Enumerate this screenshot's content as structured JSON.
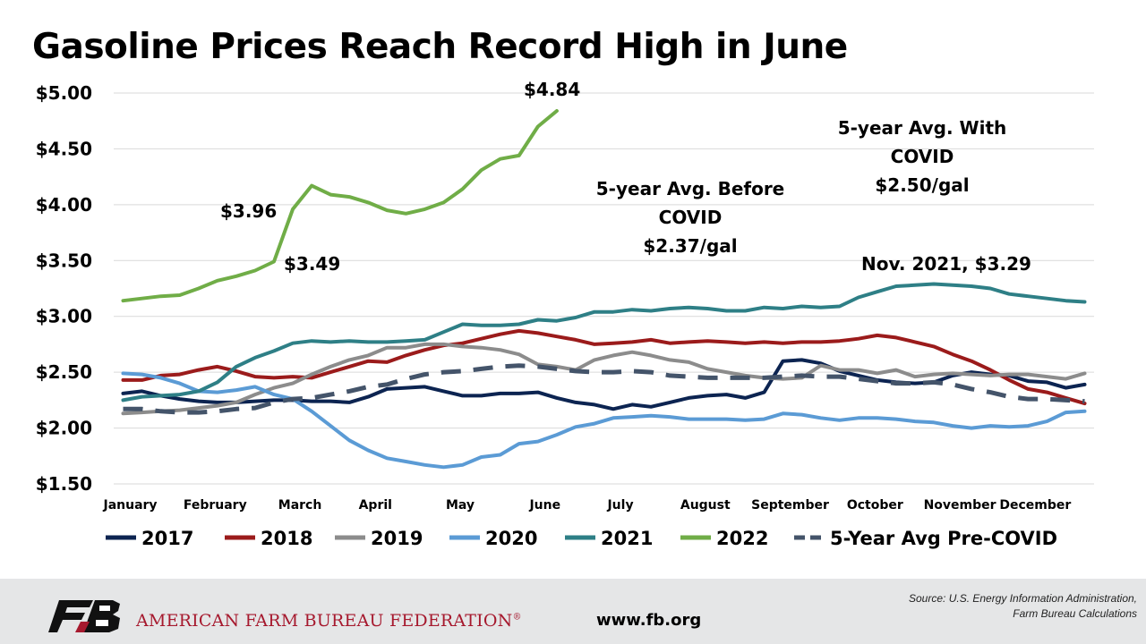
{
  "slide_title": "Gasoline Prices Reach Record High in June",
  "chart_data": {
    "type": "line",
    "title": "Gasoline Prices Reach Record High in June",
    "xlabel": "",
    "ylabel": "",
    "ylim": [
      1.5,
      5.0
    ],
    "y_ticks": [
      "$1.50",
      "$2.00",
      "$2.50",
      "$3.00",
      "$3.50",
      "$4.00",
      "$4.50",
      "$5.00"
    ],
    "y_tick_values": [
      1.5,
      2.0,
      2.5,
      3.0,
      3.5,
      4.0,
      4.5,
      5.0
    ],
    "x_weeks": 52,
    "months": [
      "January",
      "February",
      "March",
      "April",
      "May",
      "June",
      "July",
      "August",
      "September",
      "October",
      "November",
      "December"
    ],
    "grid": true,
    "legend_position": "bottom",
    "series": [
      {
        "name": "2017",
        "color": "#0c2451",
        "dashed": false,
        "values": [
          2.31,
          2.33,
          2.29,
          2.26,
          2.24,
          2.23,
          2.23,
          2.24,
          2.25,
          2.25,
          2.24,
          2.24,
          2.23,
          2.28,
          2.35,
          2.36,
          2.37,
          2.33,
          2.29,
          2.29,
          2.31,
          2.31,
          2.32,
          2.27,
          2.23,
          2.21,
          2.17,
          2.21,
          2.19,
          2.23,
          2.27,
          2.29,
          2.3,
          2.27,
          2.32,
          2.6,
          2.61,
          2.58,
          2.51,
          2.47,
          2.43,
          2.41,
          2.4,
          2.41,
          2.47,
          2.5,
          2.48,
          2.47,
          2.42,
          2.41,
          2.36,
          2.39
        ]
      },
      {
        "name": "2018",
        "color": "#9b1b1b",
        "dashed": false,
        "values": [
          2.43,
          2.43,
          2.47,
          2.48,
          2.52,
          2.55,
          2.51,
          2.46,
          2.45,
          2.46,
          2.45,
          2.5,
          2.55,
          2.6,
          2.59,
          2.65,
          2.7,
          2.74,
          2.76,
          2.8,
          2.84,
          2.87,
          2.85,
          2.82,
          2.79,
          2.75,
          2.76,
          2.77,
          2.79,
          2.76,
          2.77,
          2.78,
          2.77,
          2.76,
          2.77,
          2.76,
          2.77,
          2.77,
          2.78,
          2.8,
          2.83,
          2.81,
          2.77,
          2.73,
          2.66,
          2.6,
          2.52,
          2.43,
          2.35,
          2.32,
          2.27,
          2.22
        ]
      },
      {
        "name": "2019",
        "color": "#8c8c8c",
        "dashed": false,
        "values": [
          2.13,
          2.14,
          2.15,
          2.16,
          2.18,
          2.2,
          2.23,
          2.3,
          2.36,
          2.4,
          2.48,
          2.55,
          2.61,
          2.65,
          2.72,
          2.72,
          2.75,
          2.75,
          2.73,
          2.72,
          2.7,
          2.66,
          2.57,
          2.55,
          2.52,
          2.61,
          2.65,
          2.68,
          2.65,
          2.61,
          2.59,
          2.53,
          2.5,
          2.47,
          2.45,
          2.44,
          2.45,
          2.56,
          2.52,
          2.52,
          2.49,
          2.52,
          2.46,
          2.48,
          2.49,
          2.48,
          2.47,
          2.48,
          2.48,
          2.46,
          2.44,
          2.49
        ]
      },
      {
        "name": "2020",
        "color": "#5b9bd5",
        "dashed": false,
        "values": [
          2.49,
          2.48,
          2.45,
          2.4,
          2.33,
          2.32,
          2.34,
          2.37,
          2.3,
          2.26,
          2.15,
          2.02,
          1.89,
          1.8,
          1.73,
          1.7,
          1.67,
          1.65,
          1.67,
          1.74,
          1.76,
          1.86,
          1.88,
          1.94,
          2.01,
          2.04,
          2.09,
          2.1,
          2.11,
          2.1,
          2.08,
          2.08,
          2.08,
          2.07,
          2.08,
          2.13,
          2.12,
          2.09,
          2.07,
          2.09,
          2.09,
          2.08,
          2.06,
          2.05,
          2.02,
          2.0,
          2.02,
          2.01,
          2.02,
          2.06,
          2.14,
          2.15
        ]
      },
      {
        "name": "2021",
        "color": "#2e7f86",
        "dashed": false,
        "values": [
          2.25,
          2.28,
          2.29,
          2.3,
          2.33,
          2.41,
          2.55,
          2.63,
          2.69,
          2.76,
          2.78,
          2.77,
          2.78,
          2.77,
          2.77,
          2.78,
          2.79,
          2.86,
          2.93,
          2.92,
          2.92,
          2.93,
          2.97,
          2.96,
          2.99,
          3.04,
          3.04,
          3.06,
          3.05,
          3.07,
          3.08,
          3.07,
          3.05,
          3.05,
          3.08,
          3.07,
          3.09,
          3.08,
          3.09,
          3.17,
          3.22,
          3.27,
          3.28,
          3.29,
          3.28,
          3.27,
          3.25,
          3.2,
          3.18,
          3.16,
          3.14,
          3.13
        ]
      },
      {
        "name": "2022",
        "color": "#70ad47",
        "dashed": false,
        "values": [
          3.14,
          3.16,
          3.18,
          3.19,
          3.25,
          3.32,
          3.36,
          3.41,
          3.49,
          3.96,
          4.17,
          4.09,
          4.07,
          4.02,
          3.95,
          3.92,
          3.96,
          4.02,
          4.14,
          4.31,
          4.41,
          4.44,
          4.7,
          4.84
        ]
      },
      {
        "name": "5-Year Avg Pre-COVID",
        "color": "#44546a",
        "dashed": true,
        "values": [
          2.17,
          2.17,
          2.15,
          2.14,
          2.14,
          2.15,
          2.17,
          2.18,
          2.23,
          2.26,
          2.27,
          2.3,
          2.33,
          2.37,
          2.39,
          2.44,
          2.48,
          2.5,
          2.51,
          2.53,
          2.55,
          2.56,
          2.55,
          2.53,
          2.51,
          2.5,
          2.5,
          2.51,
          2.5,
          2.47,
          2.46,
          2.45,
          2.45,
          2.45,
          2.45,
          2.46,
          2.47,
          2.46,
          2.46,
          2.44,
          2.42,
          2.4,
          2.4,
          2.41,
          2.39,
          2.35,
          2.32,
          2.28,
          2.26,
          2.26,
          2.25,
          2.24
        ]
      }
    ],
    "annotations": {
      "peak": "$4.84",
      "mar_high": "$3.96",
      "mar_low": "$3.49",
      "nov_2021": "Nov. 2021, $3.29",
      "avg_before_line1": "5-year Avg. Before",
      "avg_before_line2": "COVID",
      "avg_before_line3": "$2.37/gal",
      "avg_with_line1": "5-year Avg. With",
      "avg_with_line2": "COVID",
      "avg_with_line3": "$2.50/gal"
    }
  },
  "footer": {
    "org_name": "AMERICAN FARM BUREAU FEDERATION",
    "org_mark": "®",
    "logo_text": "FB",
    "website": "www.fb.org",
    "source_line1": "Source: U.S. Energy Information Administration,",
    "source_line2": "Farm Bureau Calculations"
  },
  "colors": {
    "footer_bg": "#e5e6e7",
    "brand_red": "#a6192e",
    "gridline": "#d9d9d9"
  }
}
